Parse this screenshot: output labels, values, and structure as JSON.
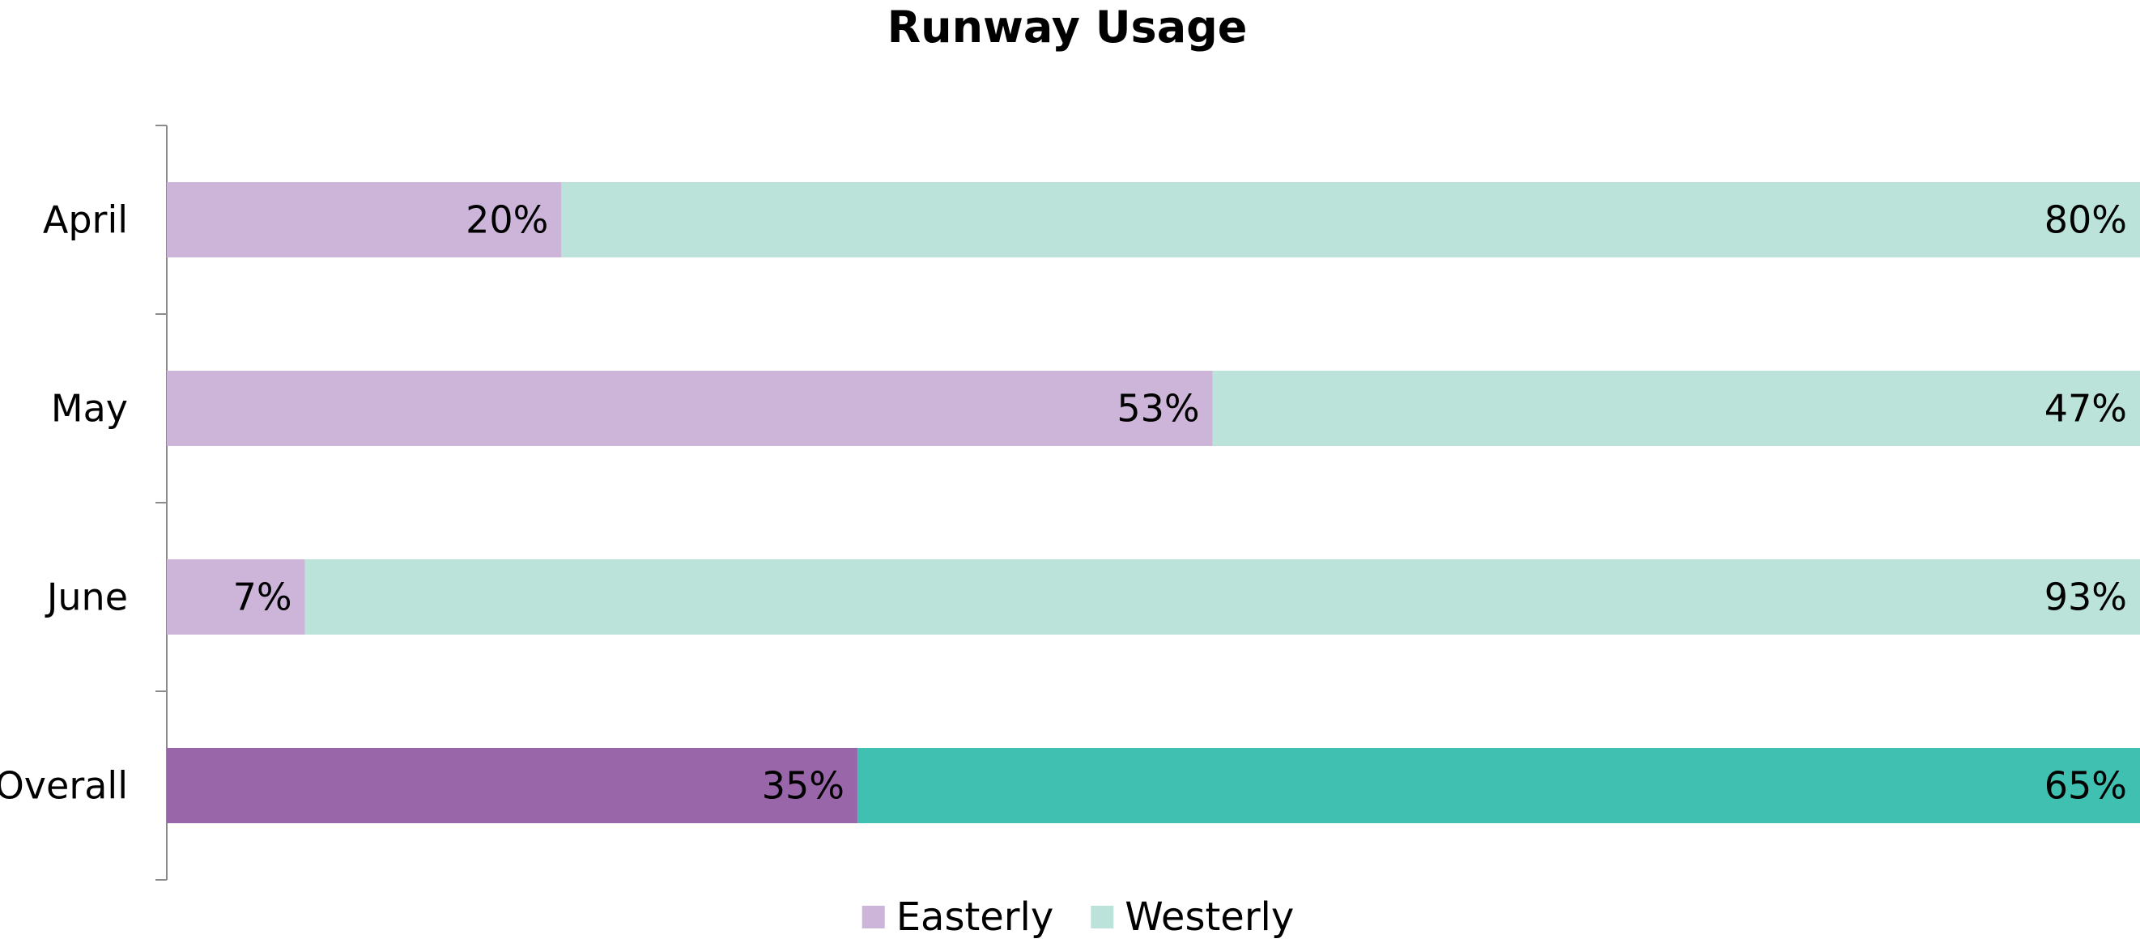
{
  "chart_data": {
    "type": "bar",
    "orientation": "horizontal",
    "stacked": true,
    "normalized": true,
    "title": "Runway Usage",
    "categories": [
      "April",
      "May",
      "June",
      "Overall"
    ],
    "series": [
      {
        "name": "Easterly",
        "values": [
          20,
          53,
          7,
          35
        ],
        "labels": [
          "20%",
          "53%",
          "7%",
          "35%"
        ],
        "color": "#cdb5da",
        "highlight_color": "#9966aa"
      },
      {
        "name": "Westerly",
        "values": [
          80,
          47,
          93,
          65
        ],
        "labels": [
          "80%",
          "47%",
          "93%",
          "65%"
        ],
        "color": "#bbe3da",
        "highlight_color": "#3fc0b0"
      }
    ],
    "highlight_category": "Overall",
    "xlim": [
      0,
      100
    ],
    "x_axis_visible": false,
    "grid": false,
    "legend_position": "bottom"
  }
}
